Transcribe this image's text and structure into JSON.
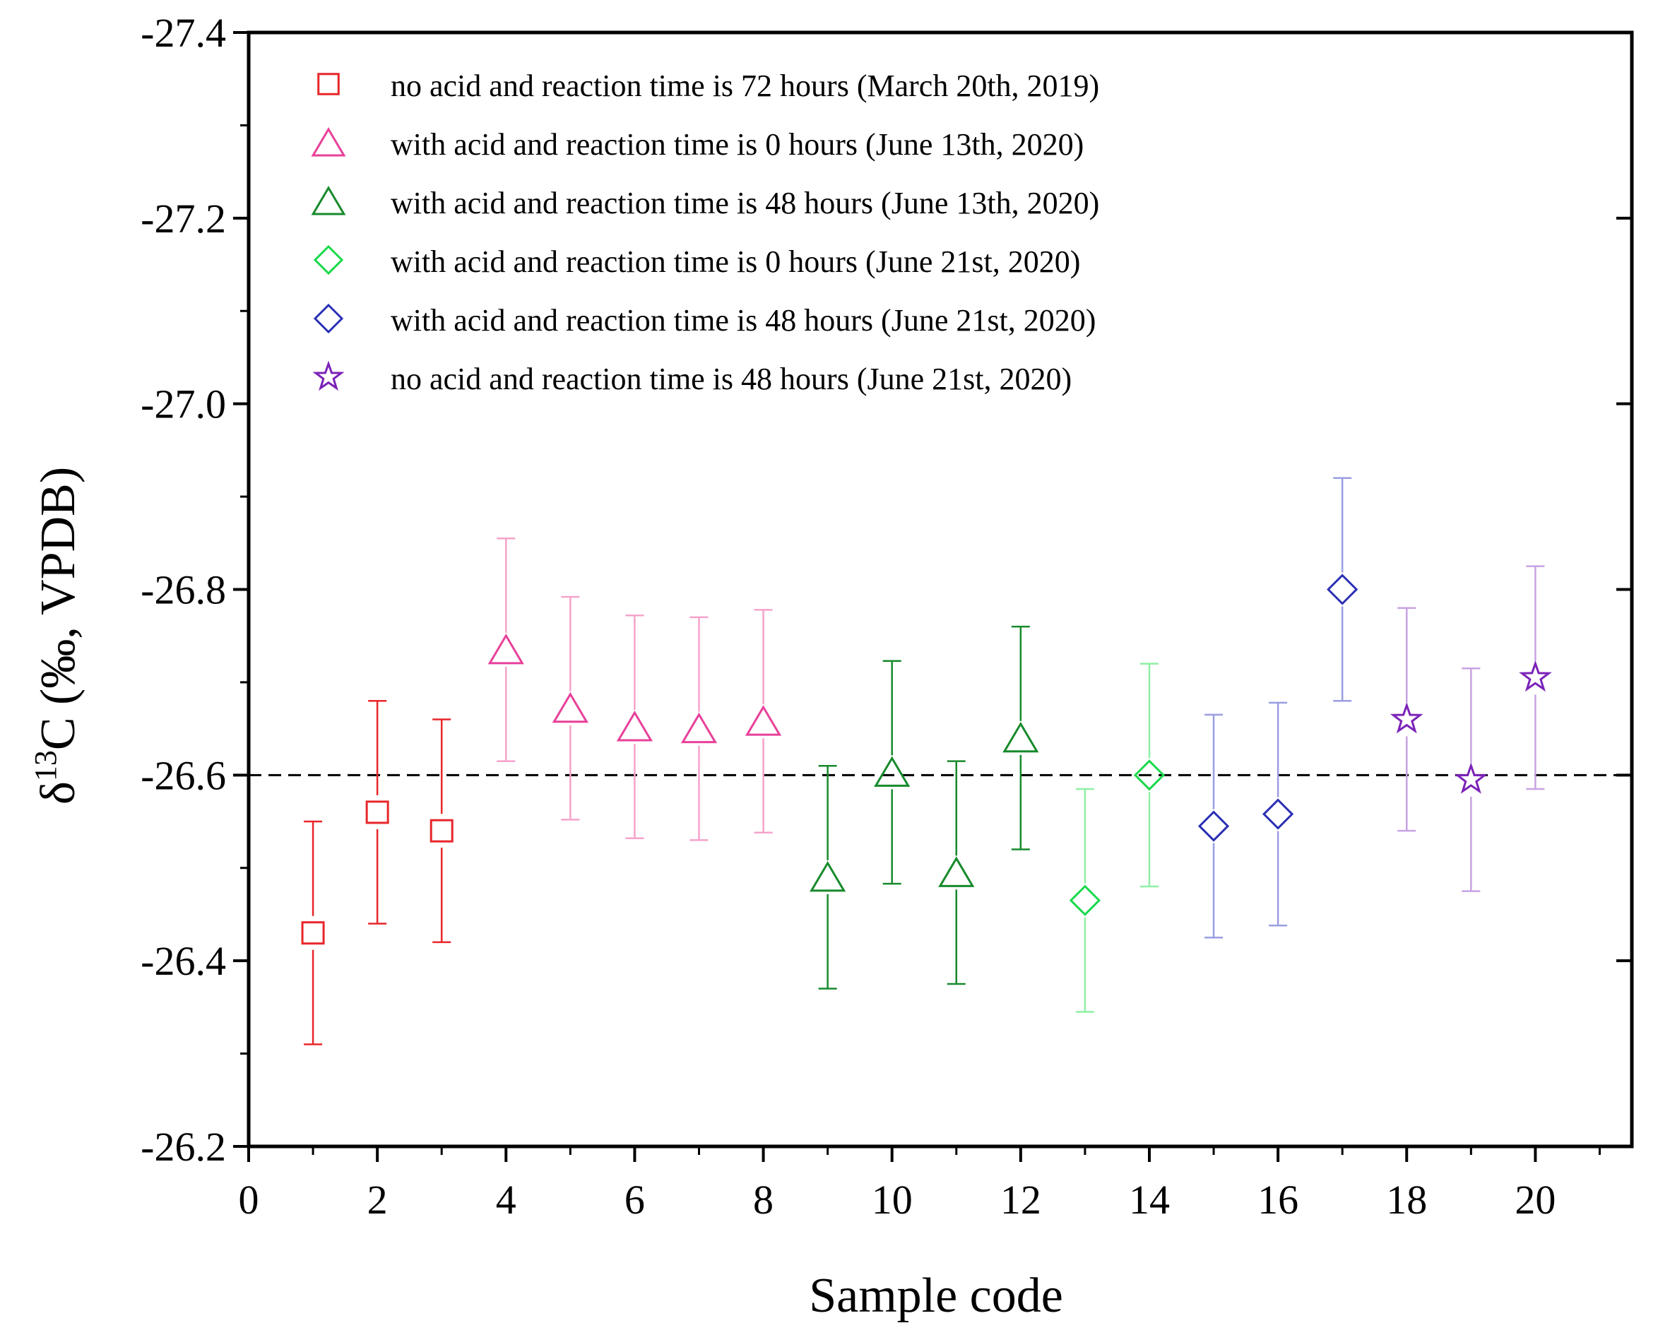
{
  "chart_data": {
    "type": "scatter",
    "title": "",
    "xlabel": "Sample code",
    "ylabel": {
      "prefix": "δ",
      "sup": "13",
      "suffix": "C (‰, VPDB)"
    },
    "xlim": [
      0,
      21.5
    ],
    "ylim": [
      -26.2,
      -27.4
    ],
    "y_inverted": true,
    "x_ticks": [
      0,
      2,
      4,
      6,
      8,
      10,
      12,
      14,
      16,
      18,
      20
    ],
    "x_tick_labels": [
      "0",
      "2",
      "4",
      "6",
      "8",
      "10",
      "12",
      "14",
      "16",
      "18",
      "20"
    ],
    "y_ticks": [
      -26.2,
      -26.4,
      -26.6,
      -26.8,
      -27.0,
      -27.2,
      -27.4
    ],
    "y_tick_labels": [
      "-26.2",
      "-26.4",
      "-26.6",
      "-26.8",
      "-27.0",
      "-27.2",
      "-27.4"
    ],
    "reference_line": {
      "y": -26.6,
      "style": "dashed",
      "color": "#000000"
    },
    "legend_position": "top-left",
    "series": [
      {
        "name": "no acid and reaction time is 72 hours (March 20th, 2019)",
        "marker": "square",
        "color": "#e8262a",
        "bar_color": "#e8262a",
        "points": [
          {
            "x": 1,
            "y": -26.43,
            "err": 0.12
          },
          {
            "x": 2,
            "y": -26.56,
            "err": 0.12
          },
          {
            "x": 3,
            "y": -26.54,
            "err": 0.12
          }
        ]
      },
      {
        "name": "with acid and reaction time is 0 hours (June 13th, 2020)",
        "marker": "triangle",
        "color": "#e8409a",
        "bar_color": "#f5a3cb",
        "points": [
          {
            "x": 4,
            "y": -26.735,
            "err": 0.12
          },
          {
            "x": 5,
            "y": -26.672,
            "err": 0.12
          },
          {
            "x": 6,
            "y": -26.652,
            "err": 0.12
          },
          {
            "x": 7,
            "y": -26.65,
            "err": 0.12
          },
          {
            "x": 8,
            "y": -26.658,
            "err": 0.12
          }
        ]
      },
      {
        "name": "with acid and reaction time is 48 hours (June 13th, 2020)",
        "marker": "triangle",
        "color": "#178a2c",
        "bar_color": "#178a2c",
        "points": [
          {
            "x": 9,
            "y": -26.49,
            "err": 0.12
          },
          {
            "x": 10,
            "y": -26.603,
            "err": 0.12
          },
          {
            "x": 11,
            "y": -26.495,
            "err": 0.12
          },
          {
            "x": 12,
            "y": -26.64,
            "err": 0.12
          }
        ]
      },
      {
        "name": "with acid and reaction time is 0 hours (June 21st, 2020)",
        "marker": "diamond",
        "color": "#19d94a",
        "bar_color": "#8ff0a4",
        "points": [
          {
            "x": 13,
            "y": -26.465,
            "err": 0.12
          },
          {
            "x": 14,
            "y": -26.6,
            "err": 0.12
          }
        ]
      },
      {
        "name": "with acid and reaction time is 48 hours (June 21st, 2020)",
        "marker": "diamond",
        "color": "#2a2fb5",
        "bar_color": "#9a9ee0",
        "points": [
          {
            "x": 15,
            "y": -26.545,
            "err": 0.12
          },
          {
            "x": 16,
            "y": -26.558,
            "err": 0.12
          },
          {
            "x": 17,
            "y": -26.8,
            "err": 0.12
          }
        ]
      },
      {
        "name": "no acid and reaction time is 48 hours (June 21st, 2020)",
        "marker": "star",
        "color": "#7b22b8",
        "bar_color": "#c7a2e3",
        "points": [
          {
            "x": 18,
            "y": -26.66,
            "err": 0.12
          },
          {
            "x": 19,
            "y": -26.595,
            "err": 0.12
          },
          {
            "x": 20,
            "y": -26.705,
            "err": 0.12
          }
        ]
      }
    ]
  }
}
